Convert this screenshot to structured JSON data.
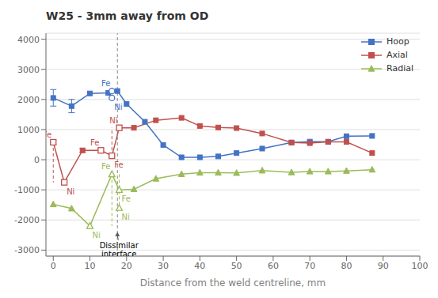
{
  "chart_data": {
    "type": "line",
    "title": "W25 - 3mm away from OD",
    "xlabel": "Distance from the weld centreline, mm",
    "xlim": [
      -2,
      100
    ],
    "ylim": [
      -3200,
      4200
    ],
    "xticks": [
      0,
      10,
      20,
      30,
      40,
      50,
      60,
      70,
      80,
      90,
      100
    ],
    "yticks": [
      -3000,
      -2000,
      -1000,
      0,
      1000,
      2000,
      3000,
      4000
    ],
    "grid": "y",
    "legend": "upper right",
    "series": [
      {
        "name": "Hoop",
        "color": "#4472C4",
        "marker": "square",
        "x": [
          0,
          5,
          10,
          15,
          17.5,
          20,
          25,
          30,
          35,
          40,
          45,
          50,
          57,
          65,
          70,
          75,
          80,
          87
        ],
        "values": [
          2050,
          1780,
          2200,
          2220,
          2280,
          1850,
          1260,
          490,
          80,
          80,
          110,
          220,
          370,
          570,
          600,
          600,
          780,
          790
        ],
        "error_x": [
          0,
          5
        ],
        "error_minus": [
          270,
          220
        ],
        "error_plus": [
          280,
          220
        ]
      },
      {
        "name": "Axial",
        "color": "#C0504D",
        "marker": "square",
        "x": [
          0,
          3,
          8,
          13,
          16,
          18,
          22,
          28,
          35,
          40,
          45,
          50,
          57,
          65,
          70,
          75,
          80,
          87
        ],
        "values": [
          580,
          -750,
          310,
          310,
          130,
          1060,
          1060,
          1310,
          1390,
          1120,
          1070,
          1050,
          870,
          570,
          550,
          590,
          590,
          220
        ],
        "error_x": [
          0,
          8,
          13
        ],
        "error_minus": [
          70,
          60,
          60
        ],
        "error_plus": [
          70,
          60,
          60
        ]
      },
      {
        "name": "Radial",
        "color": "#9BBB59",
        "marker": "triangle",
        "x": [
          0,
          5,
          10,
          16,
          18,
          22,
          28,
          35,
          40,
          45,
          50,
          57,
          65,
          70,
          75,
          80,
          87
        ],
        "values": [
          -1480,
          -1620,
          -2200,
          -480,
          -1000,
          -980,
          -630,
          -480,
          -430,
          -430,
          -440,
          -360,
          -420,
          -390,
          -390,
          -370,
          -330
        ]
      }
    ],
    "vertical_lines": [
      {
        "x": 17.5,
        "color": "#888888",
        "line_style": "dashed"
      }
    ],
    "dashed_segments": [
      {
        "x": 0,
        "y": [
          580,
          -750
        ],
        "color": "#C0504D",
        "line_style": "dashed"
      },
      {
        "x": 13,
        "y": [
          310,
          130
        ],
        "color": "#C0504D",
        "line_style": "dashed"
      },
      {
        "x": 16,
        "y": [
          130,
          1060
        ],
        "color": "#C0504D",
        "line_style": "dashed"
      },
      {
        "x": 16,
        "y": [
          -480,
          -2200
        ],
        "color": "#9BBB59",
        "line_style": "dashed"
      },
      {
        "x": 18,
        "y": [
          -480,
          -1600
        ],
        "color": "#9BBB59",
        "line_style": "dashed"
      }
    ],
    "point_annotations": [
      {
        "text": "Fe",
        "x": 16,
        "y": 2280,
        "color": "#4472C4",
        "marker": "circle"
      },
      {
        "text": "Ni",
        "x": 16,
        "y": 2050,
        "color": "#4472C4",
        "marker": "circle"
      },
      {
        "text": "Fe",
        "x": 0,
        "y": 580,
        "color": "#C0504D",
        "marker": "square"
      },
      {
        "text": "Ni",
        "x": 3,
        "y": -750,
        "color": "#C0504D",
        "marker": "square"
      },
      {
        "text": "Fe",
        "x": 13,
        "y": 310,
        "color": "#C0504D",
        "marker": "square"
      },
      {
        "text": "Fe",
        "x": 16,
        "y": 130,
        "color": "#C0504D",
        "marker": "square"
      },
      {
        "text": "Ni",
        "x": 18,
        "y": 1060,
        "color": "#C0504D",
        "marker": "square"
      },
      {
        "text": "Fe",
        "x": 16,
        "y": -480,
        "color": "#9BBB59",
        "marker": "triangle"
      },
      {
        "text": "Fe",
        "x": 18,
        "y": -1000,
        "color": "#9BBB59",
        "marker": "triangle"
      },
      {
        "text": "Ni",
        "x": 10,
        "y": -2200,
        "color": "#9BBB59",
        "marker": "triangle"
      },
      {
        "text": "Ni",
        "x": 18,
        "y": -1600,
        "color": "#9BBB59",
        "marker": "triangle"
      }
    ],
    "annotations": [
      {
        "text": "Dissimilar\ninterface",
        "x": 17.5,
        "y": -2380
      }
    ]
  }
}
